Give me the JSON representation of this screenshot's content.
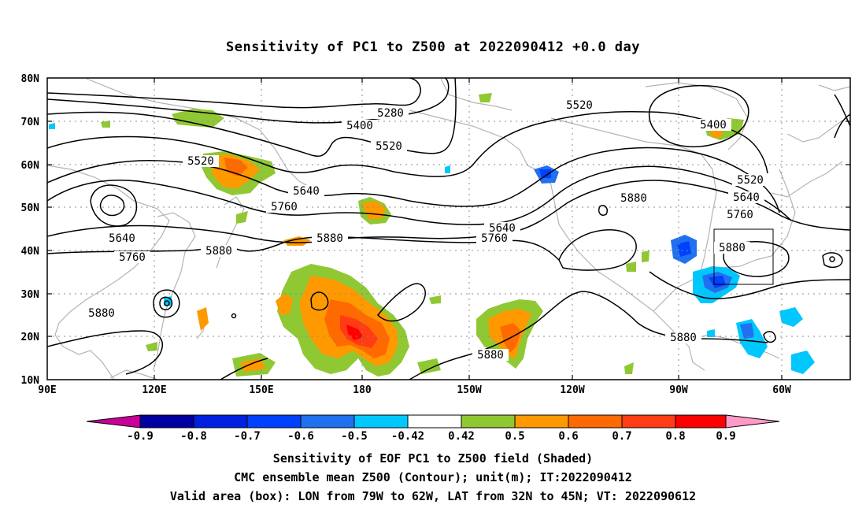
{
  "title": "Sensitivity of PC1 to Z500 at 2022090412 +0.0 day",
  "map": {
    "lat_labels": [
      "80N",
      "70N",
      "60N",
      "50N",
      "40N",
      "30N",
      "20N",
      "10N"
    ],
    "lon_labels": [
      "90E",
      "120E",
      "150E",
      "180",
      "150W",
      "120W",
      "90W",
      "60W"
    ],
    "contour_labels": [
      "5280",
      "5400",
      "5520",
      "5520",
      "5520",
      "5400",
      "5640",
      "5760",
      "5640",
      "5760",
      "5880",
      "5880",
      "5880",
      "5640",
      "5760",
      "5520",
      "5640",
      "5760",
      "5880",
      "5880",
      "5880",
      "5880"
    ],
    "valid_box": {
      "lon_from": "79W",
      "lon_to": "62W",
      "lat_from": "32N",
      "lat_to": "45N"
    }
  },
  "colorbar": {
    "labels": [
      "-0.9",
      "-0.8",
      "-0.7",
      "-0.6",
      "-0.5",
      "-0.42",
      "0.42",
      "0.5",
      "0.6",
      "0.7",
      "0.8",
      "0.9"
    ],
    "colors": [
      "#c8009a",
      "#0000a0",
      "#0020e0",
      "#0040ff",
      "#2070f0",
      "#0090ff",
      "#00c8ff",
      "#ffffff",
      "#90c834",
      "#ff9900",
      "#ff6a00",
      "#ff3c14",
      "#ff0000",
      "#ff99c8"
    ]
  },
  "footer": {
    "line1": "Sensitivity of EOF PC1 to Z500 field (Shaded)",
    "line2": "CMC ensemble mean Z500 (Contour); unit(m); IT:2022090412",
    "line3": "Valid area (box): LON from 79W to 62W, LAT from 32N to 45N; VT: 2022090612"
  }
}
